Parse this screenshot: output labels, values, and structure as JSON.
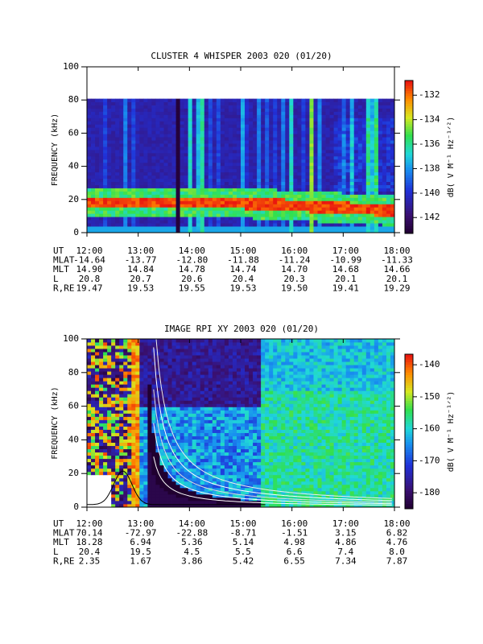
{
  "chart_data": [
    {
      "type": "spectrogram",
      "title": "CLUSTER 4 WHISPER 2003 020 (01/20)",
      "ylabel": "FREQUENCY (kHz)",
      "xlim": [
        12,
        18
      ],
      "xticks": [
        {
          "value": 12,
          "label": "12:00"
        },
        {
          "value": 13,
          "label": "13:00"
        },
        {
          "value": 14,
          "label": "14:00"
        },
        {
          "value": 15,
          "label": "15:00"
        },
        {
          "value": 16,
          "label": "16:00"
        },
        {
          "value": 17,
          "label": "17:00"
        },
        {
          "value": 18,
          "label": "18:00"
        }
      ],
      "ylim": [
        0,
        100
      ],
      "yticks": [
        0,
        20,
        40,
        60,
        80,
        100
      ],
      "colorbar_label": "dB( V M⁻¹ Hz⁻¹ᐟ²)",
      "clim": [
        -143.3,
        -130.8
      ],
      "cticks": [
        -132,
        -134,
        -136,
        -138,
        -140,
        -142
      ],
      "ephemeris": [
        [
          "UT",
          "12:00",
          "13:00",
          "14:00",
          "15:00",
          "16:00",
          "17:00",
          "18:00"
        ],
        [
          "MLAT",
          "-14.64",
          "-13.77",
          "-12.80",
          "-11.88",
          "-11.24",
          "-10.99",
          "-11.33"
        ],
        [
          "MLT",
          "14.90",
          "14.84",
          "14.78",
          "14.74",
          "14.70",
          "14.68",
          "14.66"
        ],
        [
          "L",
          "20.8",
          "20.7",
          "20.6",
          "20.4",
          "20.3",
          "20.1",
          "20.1"
        ],
        [
          "R,RE",
          "19.47",
          "19.53",
          "19.55",
          "19.53",
          "19.50",
          "19.41",
          "19.29"
        ]
      ]
    },
    {
      "type": "spectrogram",
      "title": "IMAGE RPI XY 2003 020 (01/20)",
      "ylabel": "FREQUENCY (kHz)",
      "xlim": [
        12,
        18
      ],
      "xticks": [
        {
          "value": 12,
          "label": "12:00"
        },
        {
          "value": 13,
          "label": "13:00"
        },
        {
          "value": 14,
          "label": "14:00"
        },
        {
          "value": 15,
          "label": "15:00"
        },
        {
          "value": 16,
          "label": "16:00"
        },
        {
          "value": 17,
          "label": "17:00"
        },
        {
          "value": 18,
          "label": "18:00"
        }
      ],
      "ylim": [
        0,
        100
      ],
      "yticks": [
        0,
        20,
        40,
        60,
        80,
        100
      ],
      "colorbar_label": "dB( V M⁻¹ Hz⁻¹ᐟ²)",
      "clim": [
        -185,
        -136.7
      ],
      "cticks": [
        -140,
        -150,
        -160,
        -170,
        -180
      ],
      "ephemeris": [
        [
          "UT",
          "12:00",
          "13:00",
          "14:00",
          "15:00",
          "16:00",
          "17:00",
          "18:00"
        ],
        [
          "MLAT",
          "70.14",
          "-72.97",
          "-22.88",
          "-8.71",
          "-1.51",
          "3.15",
          "6.82"
        ],
        [
          "MLT",
          "18.28",
          "6.94",
          "5.36",
          "5.14",
          "4.98",
          "4.86",
          "4.76"
        ],
        [
          "L",
          "20.4",
          "19.5",
          "4.5",
          "5.5",
          "6.6",
          "7.4",
          "8.0"
        ],
        [
          "R,RE",
          "2.35",
          "1.67",
          "3.86",
          "5.42",
          "6.55",
          "7.34",
          "7.87"
        ]
      ]
    }
  ]
}
